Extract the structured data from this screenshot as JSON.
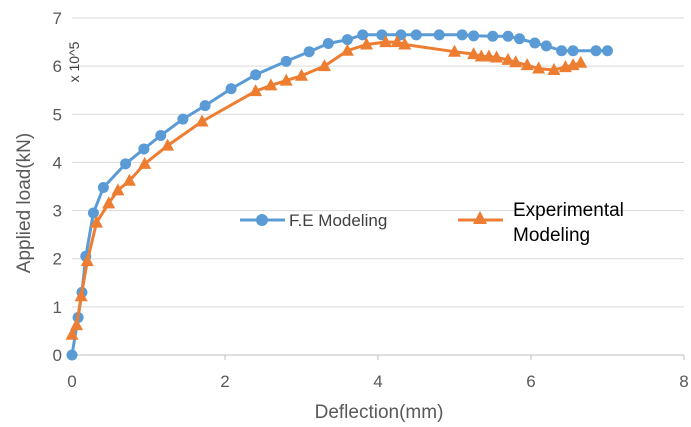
{
  "chart_data": {
    "type": "line",
    "title": "",
    "xlabel": "Deflection(mm)",
    "ylabel": "Applied load(kN)",
    "scale_note": "x 10^5",
    "xlim": [
      0,
      8
    ],
    "ylim": [
      0,
      7
    ],
    "x_ticks": [
      "0",
      "2",
      "4",
      "6",
      "8"
    ],
    "y_ticks": [
      "0",
      "1",
      "2",
      "3",
      "4",
      "5",
      "6",
      "7"
    ],
    "grid": "horizontal",
    "legend_placement": "center",
    "series": [
      {
        "name": "F.E Modeling",
        "color": "#5B9BD5",
        "marker": "circle",
        "x": [
          0.0,
          0.08,
          0.13,
          0.18,
          0.28,
          0.41,
          0.7,
          0.94,
          1.16,
          1.45,
          1.74,
          2.08,
          2.4,
          2.8,
          3.1,
          3.35,
          3.6,
          3.8,
          4.05,
          4.3,
          4.5,
          4.8,
          5.1,
          5.25,
          5.5,
          5.7,
          5.85,
          6.05,
          6.2,
          6.4,
          6.55,
          6.85,
          7.0
        ],
        "y": [
          0.0,
          0.78,
          1.3,
          2.05,
          2.95,
          3.48,
          3.97,
          4.28,
          4.56,
          4.9,
          5.18,
          5.53,
          5.82,
          6.1,
          6.3,
          6.47,
          6.55,
          6.65,
          6.65,
          6.65,
          6.65,
          6.65,
          6.65,
          6.63,
          6.62,
          6.62,
          6.57,
          6.48,
          6.42,
          6.32,
          6.32,
          6.32,
          6.32
        ]
      },
      {
        "name": "Experimental Modeling",
        "color": "#ED7D31",
        "marker": "triangle",
        "x": [
          0.0,
          0.06,
          0.12,
          0.2,
          0.32,
          0.48,
          0.6,
          0.75,
          0.95,
          1.25,
          1.7,
          2.4,
          2.6,
          2.8,
          3.0,
          3.3,
          3.6,
          3.85,
          4.1,
          4.25,
          4.35,
          5.0,
          5.25,
          5.35,
          5.45,
          5.55,
          5.7,
          5.8,
          5.95,
          6.1,
          6.3,
          6.45,
          6.55,
          6.65
        ],
        "y": [
          0.42,
          0.62,
          1.22,
          1.95,
          2.75,
          3.15,
          3.42,
          3.62,
          3.97,
          4.35,
          4.85,
          5.48,
          5.6,
          5.7,
          5.8,
          6.0,
          6.32,
          6.45,
          6.5,
          6.5,
          6.45,
          6.3,
          6.25,
          6.2,
          6.2,
          6.18,
          6.13,
          6.08,
          6.02,
          5.95,
          5.92,
          5.98,
          6.02,
          6.07
        ]
      }
    ]
  }
}
